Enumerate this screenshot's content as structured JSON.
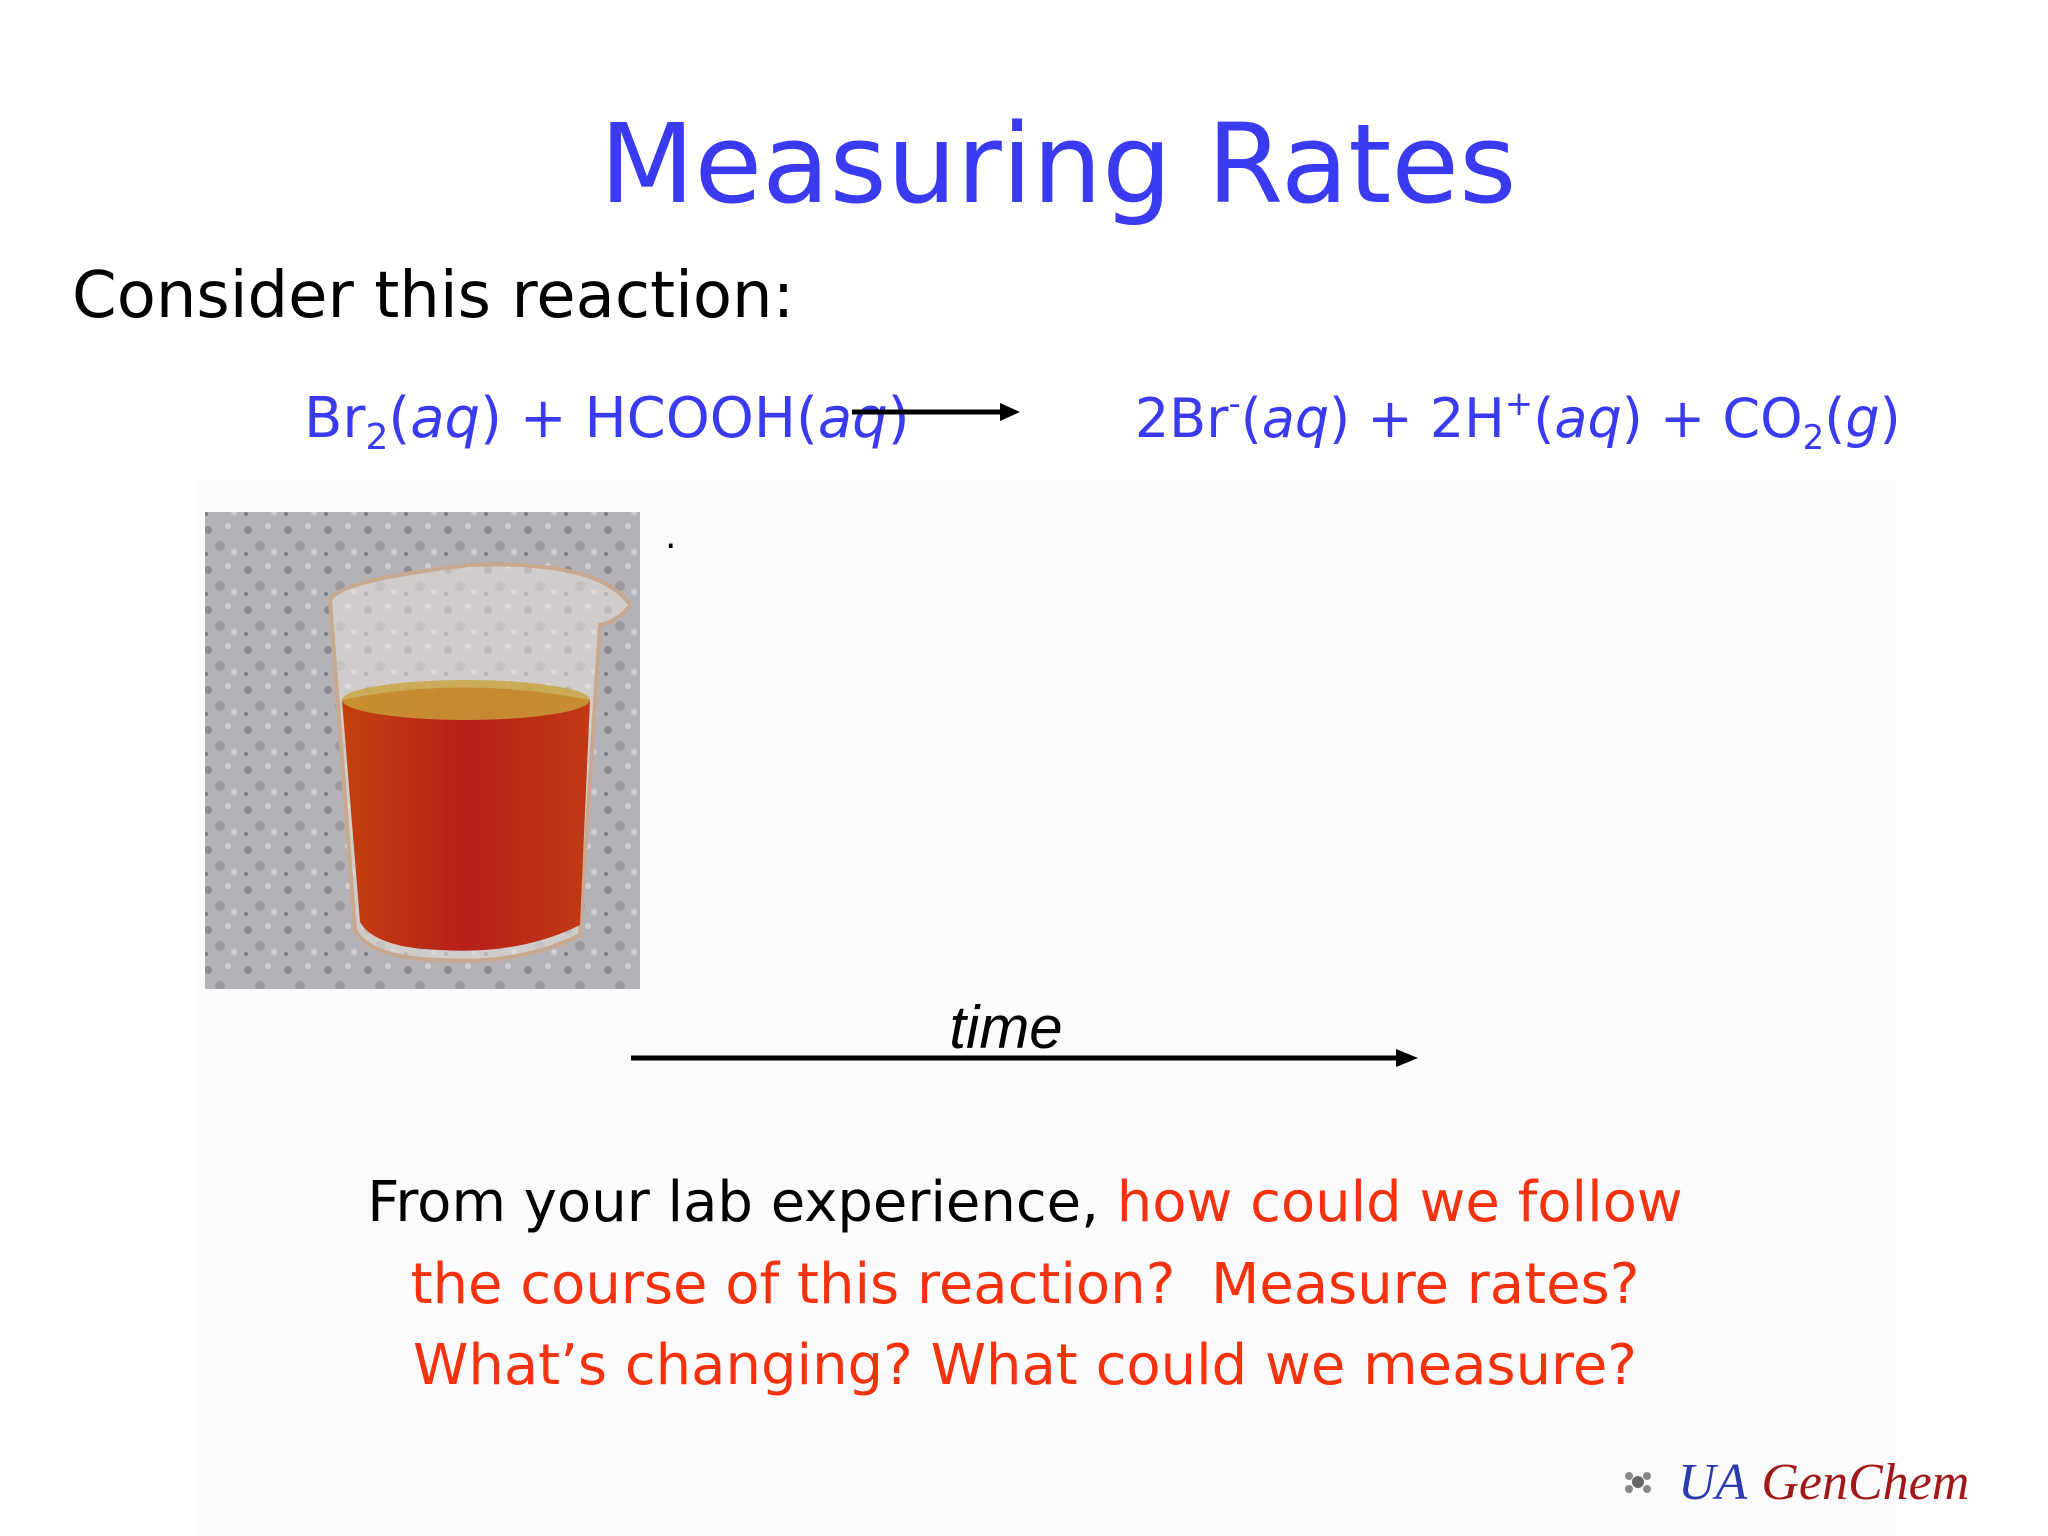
{
  "header": {
    "title": "Measuring Rates"
  },
  "intro": "Consider this reaction:",
  "equation": {
    "reactants": [
      "Br",
      "2",
      "(",
      "aq",
      ") + HCOOH(",
      "aq",
      ")"
    ],
    "products": [
      "2Br",
      "-",
      "(",
      "aq",
      ") + 2H",
      "+",
      "(",
      "aq",
      ") + CO",
      "2",
      "(",
      "g",
      ")"
    ]
  },
  "stray_mark": ".",
  "time_axis": {
    "label": "time"
  },
  "question": {
    "lines": [
      [
        "From your lab experience, ",
        "how could we follow"
      ],
      [
        "the course of this reaction?  Measure rates?"
      ],
      [
        "What’s changing? What could we measure?"
      ]
    ]
  },
  "footer": {
    "org": "UA",
    "name": "GenChem"
  }
}
